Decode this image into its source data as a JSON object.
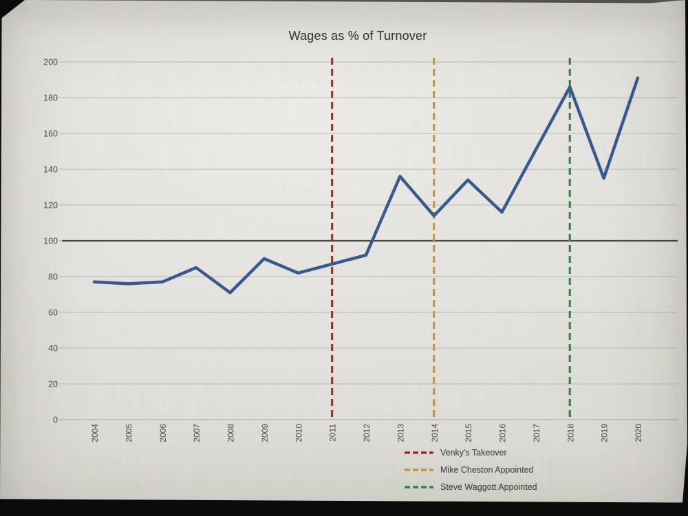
{
  "chart_data": {
    "type": "line",
    "title": "Wages as % of Turnover",
    "categories": [
      "2004",
      "2005",
      "2006",
      "2007",
      "2008",
      "2009",
      "2010",
      "2011",
      "2012",
      "2013",
      "2014",
      "2015",
      "2016",
      "2017",
      "2018",
      "2019",
      "2020"
    ],
    "series": [
      {
        "name": "Wages as % of Turnover",
        "color": "#36598f",
        "values": [
          77,
          76,
          77,
          85,
          71,
          90,
          82,
          87,
          92,
          136,
          114,
          134,
          116,
          151,
          186,
          135,
          191
        ]
      }
    ],
    "xlabel": "",
    "ylabel": "",
    "ylim": [
      0,
      200
    ],
    "ytick_step": 20,
    "grid": true,
    "reference_line": {
      "value": 100,
      "color": "#49483f"
    },
    "vlines": [
      {
        "id": "venkys-takeover",
        "year": "2011",
        "label": "Venky's Takeover",
        "color": "#aa2a23"
      },
      {
        "id": "mike-cheston-appointed",
        "year": "2014",
        "label": "Mike Cheston Appointed",
        "color": "#c49b2e"
      },
      {
        "id": "steve-waggott-appointed",
        "year": "2018",
        "label": "Steve Waggott Appointed",
        "color": "#2e8b45"
      }
    ],
    "legend_position": "bottom"
  },
  "colors": {
    "screen_background": "#e3e1db",
    "gridline": "#bcbab4",
    "axis_text": "#4b4a45"
  }
}
